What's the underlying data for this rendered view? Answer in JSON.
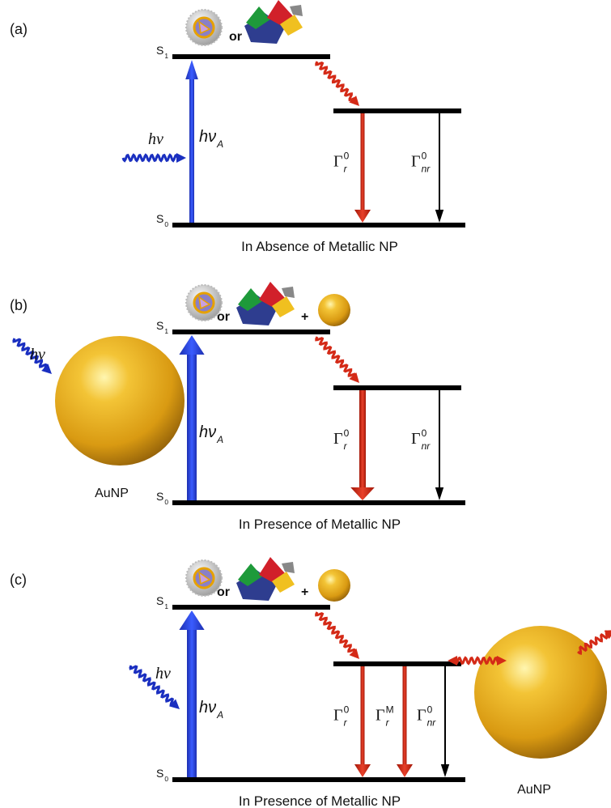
{
  "panels": [
    {
      "label": "(a)",
      "connector": "or",
      "s1": {
        "symbol": "S",
        "sub": "1"
      },
      "s0": {
        "symbol": "S",
        "sub": "0"
      },
      "excitation": "hν",
      "absorption": {
        "symbol": "hν",
        "sub": "A"
      },
      "radiative": {
        "symbol": "Γ",
        "sub": "r",
        "sup": "0"
      },
      "nonradiative": {
        "symbol": "Γ",
        "sub": "nr",
        "sup": "0"
      },
      "caption": "In Absence of Metallic NP"
    },
    {
      "label": "(b)",
      "connector": "or",
      "plus": "+",
      "particle": "AuNP",
      "s1": {
        "symbol": "S",
        "sub": "1"
      },
      "s0": {
        "symbol": "S",
        "sub": "0"
      },
      "excitation": "hν",
      "absorption": {
        "symbol": "hν",
        "sub": "A"
      },
      "radiative": {
        "symbol": "Γ",
        "sub": "r",
        "sup": "0"
      },
      "nonradiative": {
        "symbol": "Γ",
        "sub": "nr",
        "sup": "0"
      },
      "caption": "In Presence of Metallic NP"
    },
    {
      "label": "(c)",
      "connector": "or",
      "plus": "+",
      "particle": "AuNP",
      "s1": {
        "symbol": "S",
        "sub": "1"
      },
      "s0": {
        "symbol": "S",
        "sub": "0"
      },
      "excitation": "hν",
      "absorption": {
        "symbol": "hν",
        "sub": "A"
      },
      "radiative": {
        "symbol": "Γ",
        "sub": "r",
        "sup": "0"
      },
      "metal_radiative": {
        "symbol": "Γ",
        "sub": "r",
        "sup": "M"
      },
      "nonradiative": {
        "symbol": "Γ",
        "sub": "nr",
        "sup": "0"
      },
      "caption": "In Presence of Metallic NP"
    }
  ]
}
